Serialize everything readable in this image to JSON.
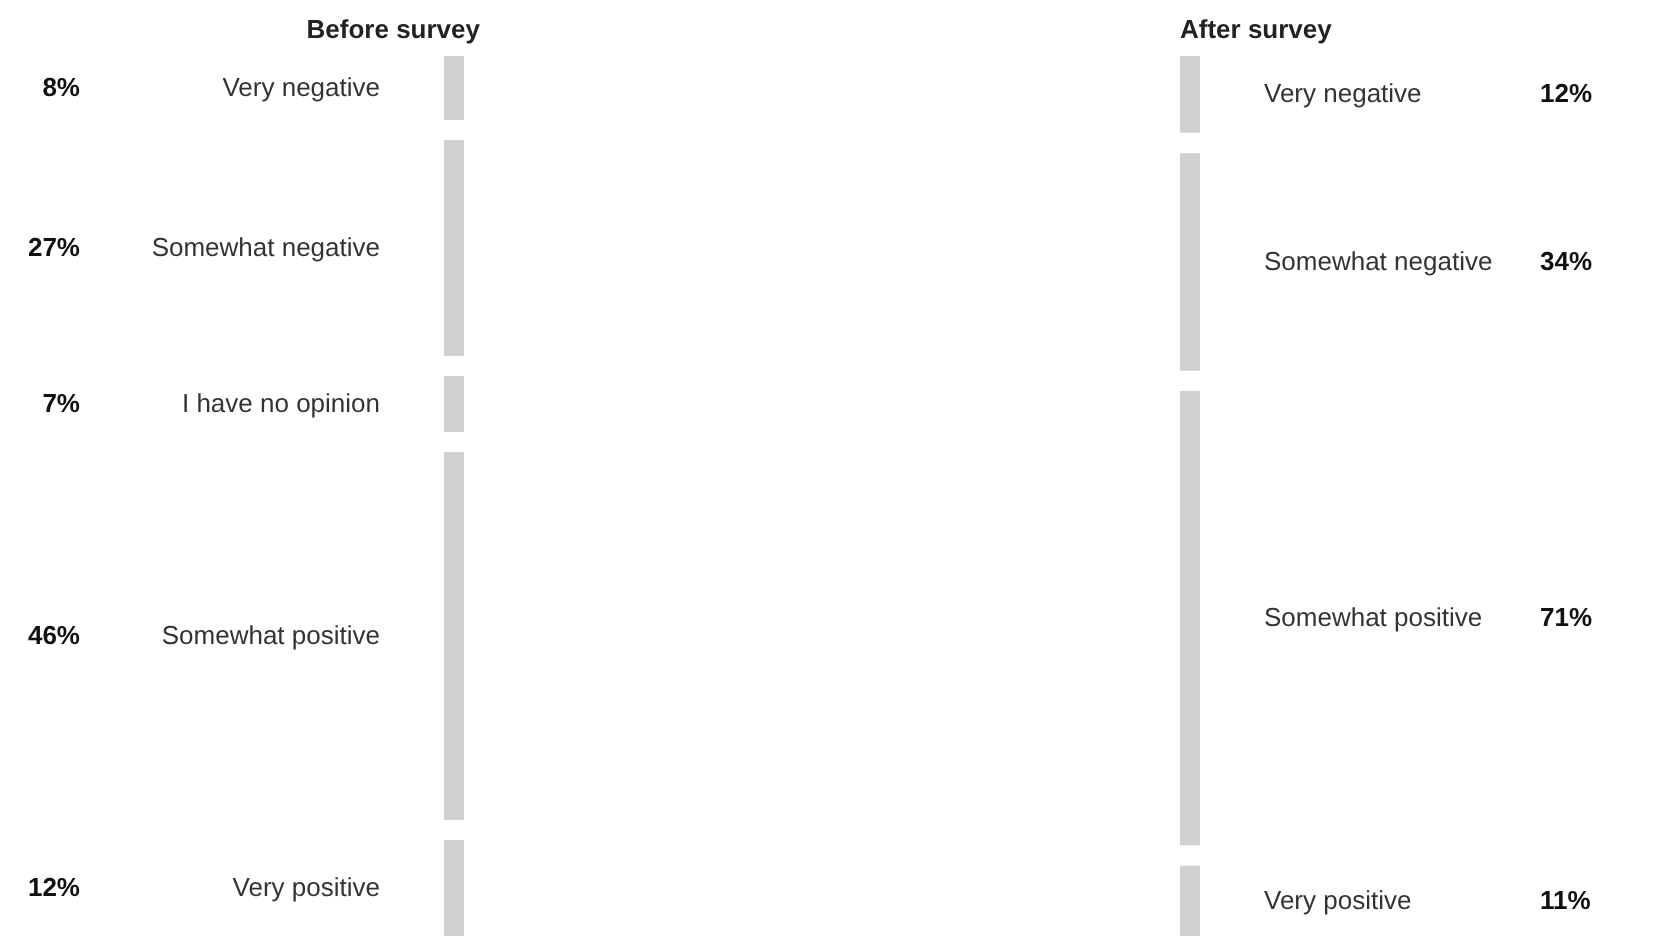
{
  "chart_data": [
    {
      "type": "other",
      "title": "Before survey",
      "categories": [
        "Very negative",
        "Somewhat negative",
        "I have no opinion",
        "Somewhat positive",
        "Very positive"
      ],
      "values": [
        8,
        27,
        7,
        46,
        12
      ],
      "value_labels": [
        "8%",
        "27%",
        "7%",
        "46%",
        "12%"
      ],
      "colors": [
        "#d0d0d0",
        "#d0d0d0",
        "#d0d0d0",
        "#d0d0d0",
        "#d0d0d0"
      ]
    },
    {
      "type": "other",
      "title": "After survey",
      "categories": [
        "Very negative",
        "Somewhat negative",
        "Somewhat positive",
        "Very positive"
      ],
      "values": [
        12,
        34,
        71,
        11
      ],
      "value_labels": [
        "12%",
        "34%",
        "71%",
        "11%"
      ],
      "colors": [
        "#d0d0d0",
        "#d0d0d0",
        "#d0d0d0",
        "#d0d0d0"
      ]
    }
  ]
}
